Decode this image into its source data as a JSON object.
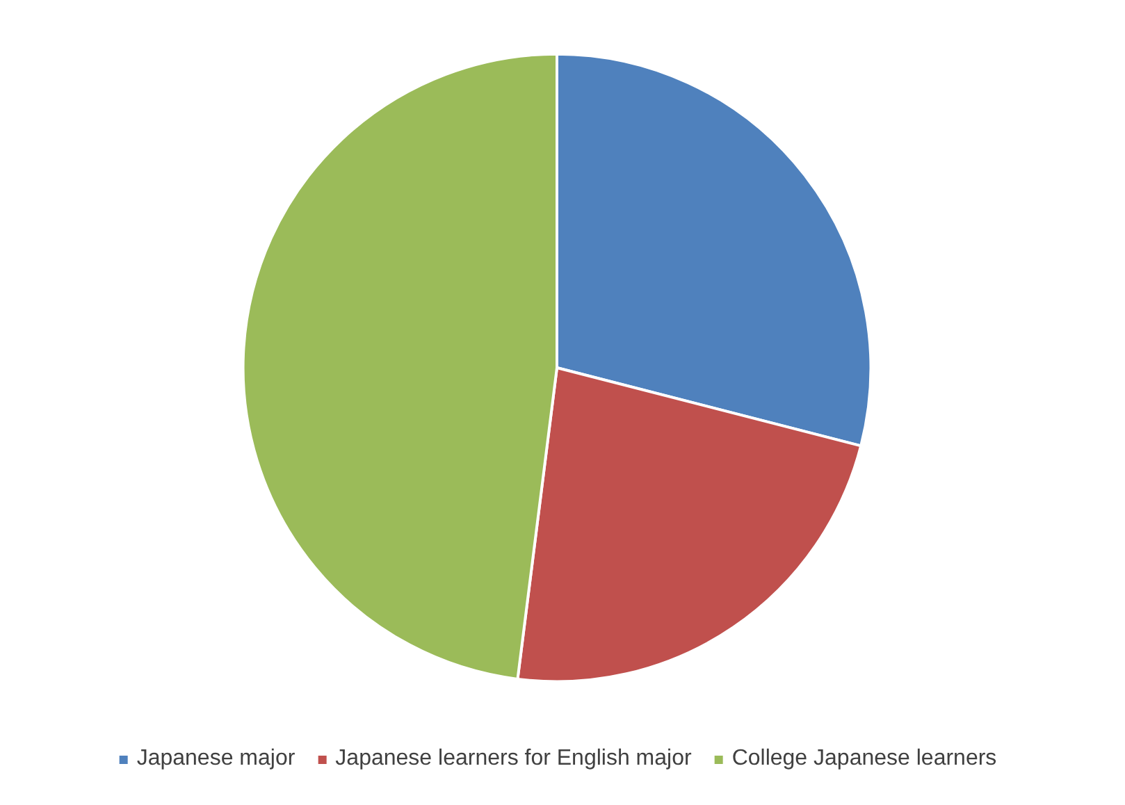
{
  "chart_data": {
    "type": "pie",
    "categories": [
      "Japanese major",
      "Japanese learners for English major",
      "College Japanese learners"
    ],
    "values": [
      29,
      23,
      48
    ],
    "colors": [
      "#4f81bd",
      "#c0504d",
      "#9bbb59"
    ],
    "legend": "bottom"
  }
}
